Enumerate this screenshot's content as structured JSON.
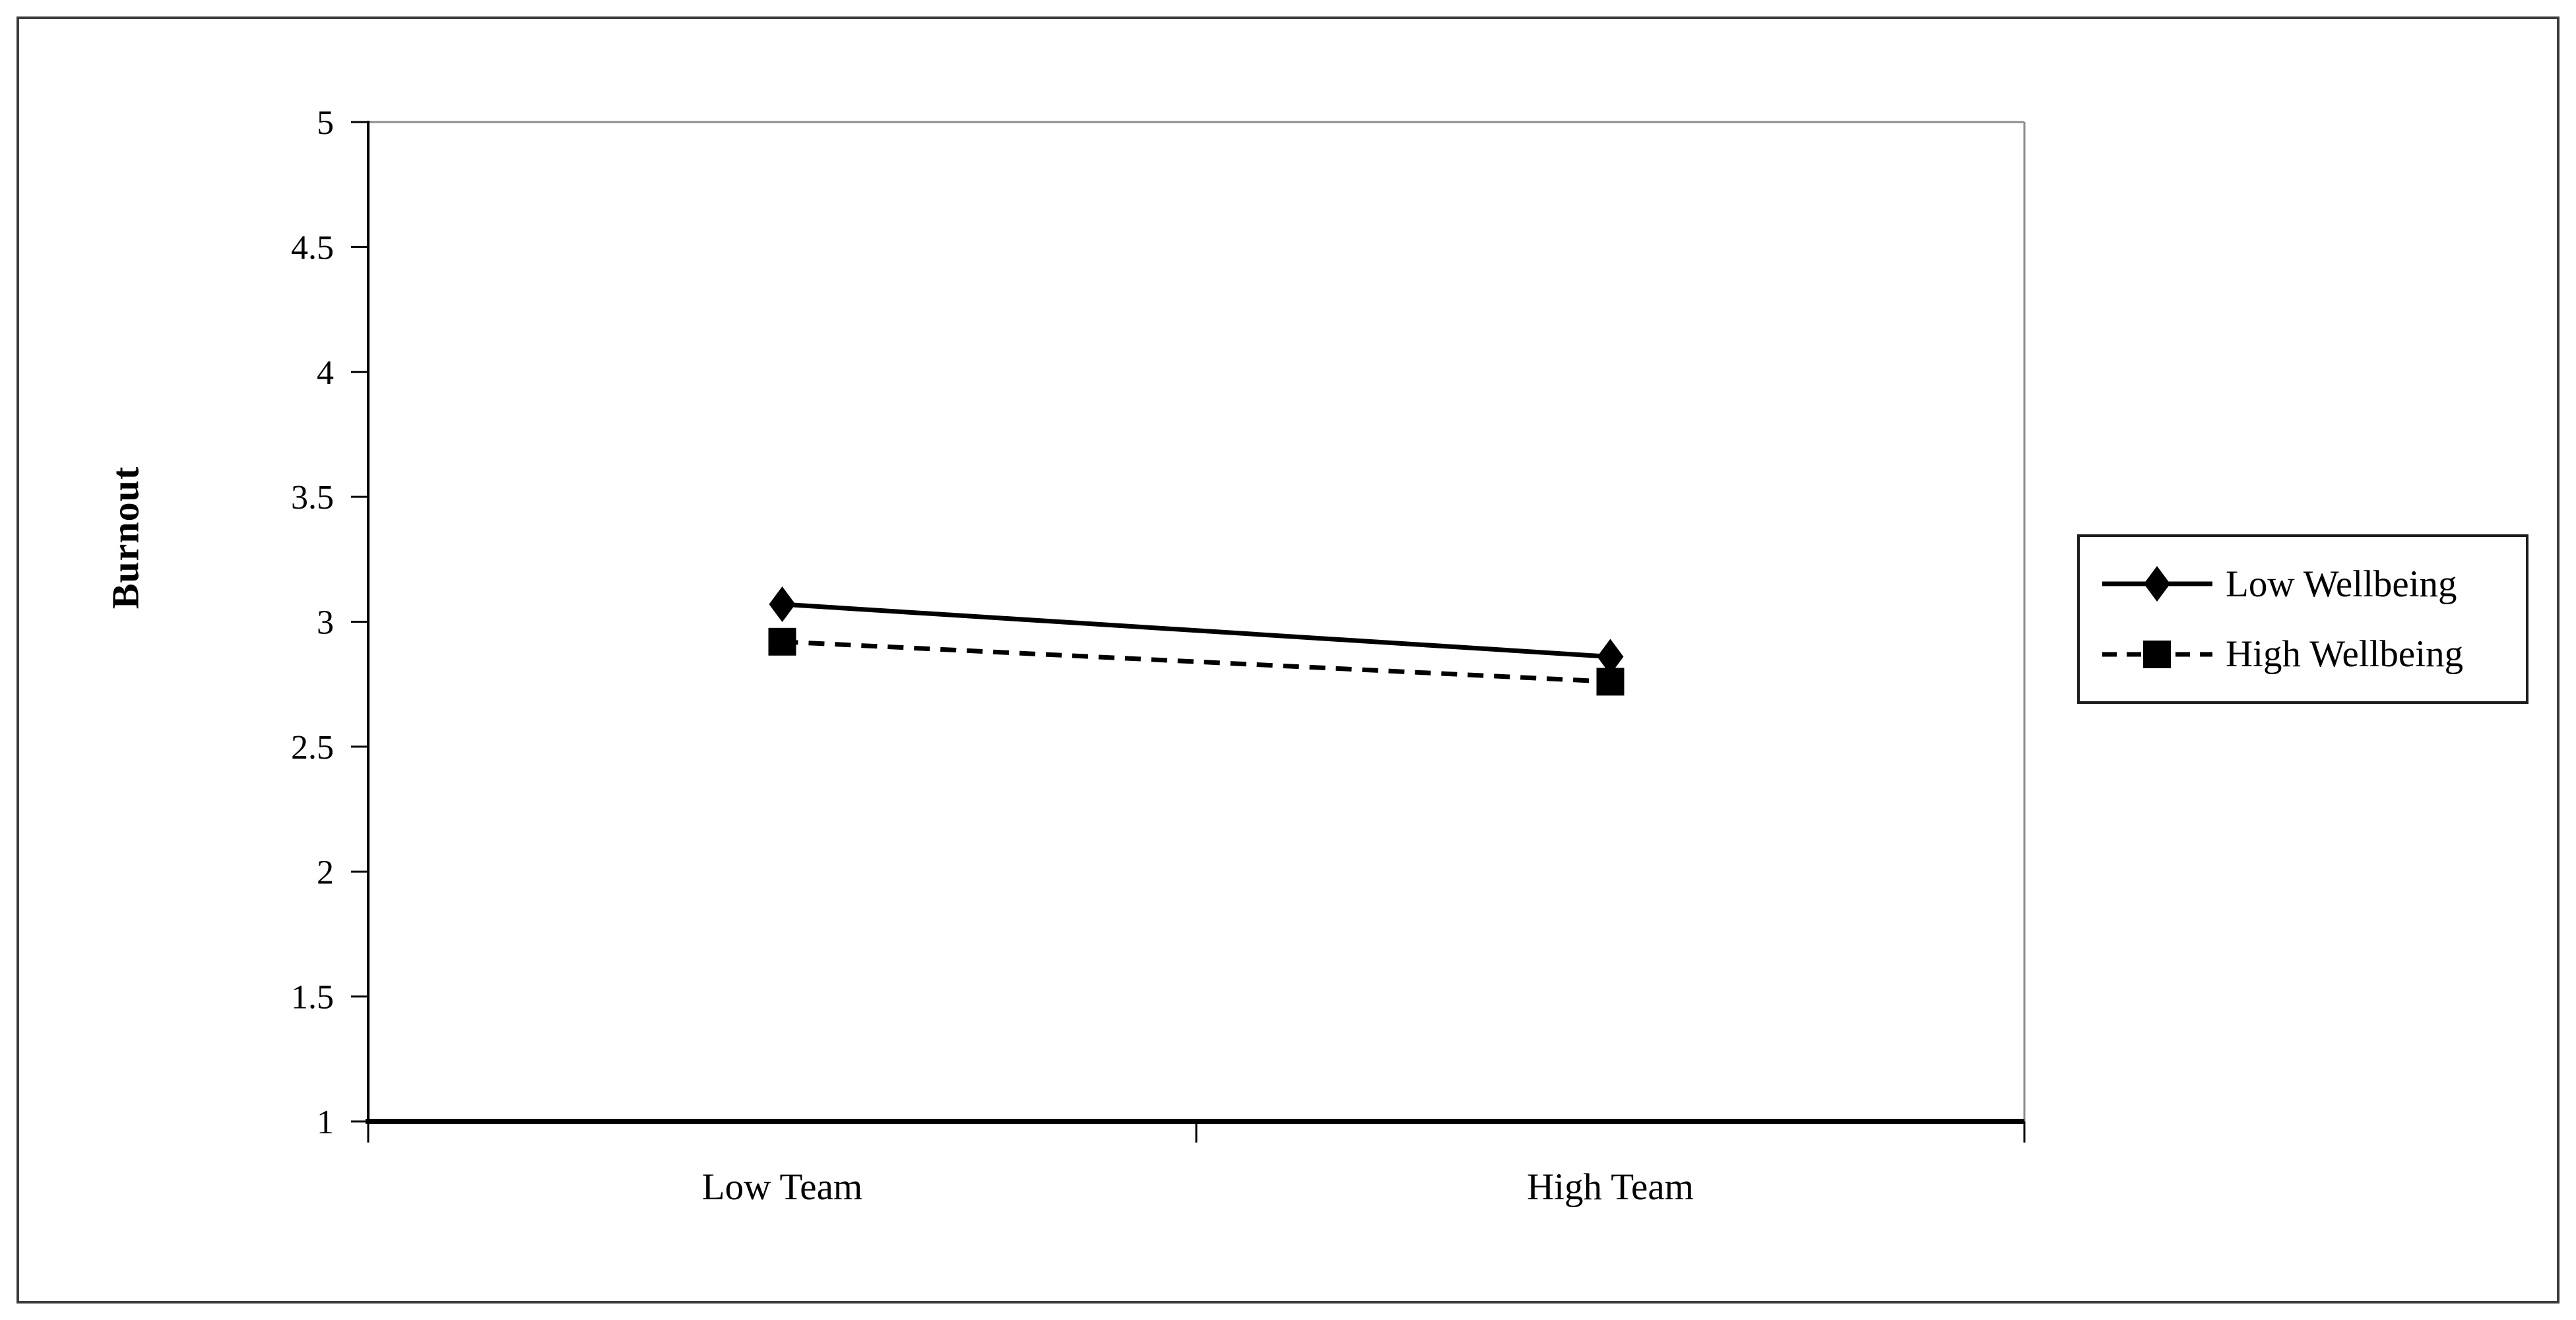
{
  "figure": {
    "background": "#ffffff",
    "border_color": "#3c3c3c"
  },
  "chart_data": {
    "type": "line",
    "title": "",
    "xlabel": "",
    "ylabel": "Burnout",
    "categories": [
      "Low Team",
      "High Team"
    ],
    "series": [
      {
        "name": "Low Wellbeing",
        "values": [
          3.07,
          2.86
        ],
        "line_style": "solid",
        "marker": "diamond",
        "color": "#000000"
      },
      {
        "name": "High Wellbeing",
        "values": [
          2.92,
          2.76
        ],
        "line_style": "dashed",
        "marker": "square",
        "color": "#000000"
      }
    ],
    "ylim": [
      1,
      5
    ],
    "ytick_step": 0.5,
    "ytick_labels": [
      "5",
      "4.5",
      "4",
      "3.5",
      "3",
      "2.5",
      "2",
      "1.5",
      "1"
    ],
    "grid": false,
    "legend_position": "right",
    "legend_boxed": true,
    "axis_color": "#000000",
    "plot_border_color": "#8c8c8c"
  }
}
